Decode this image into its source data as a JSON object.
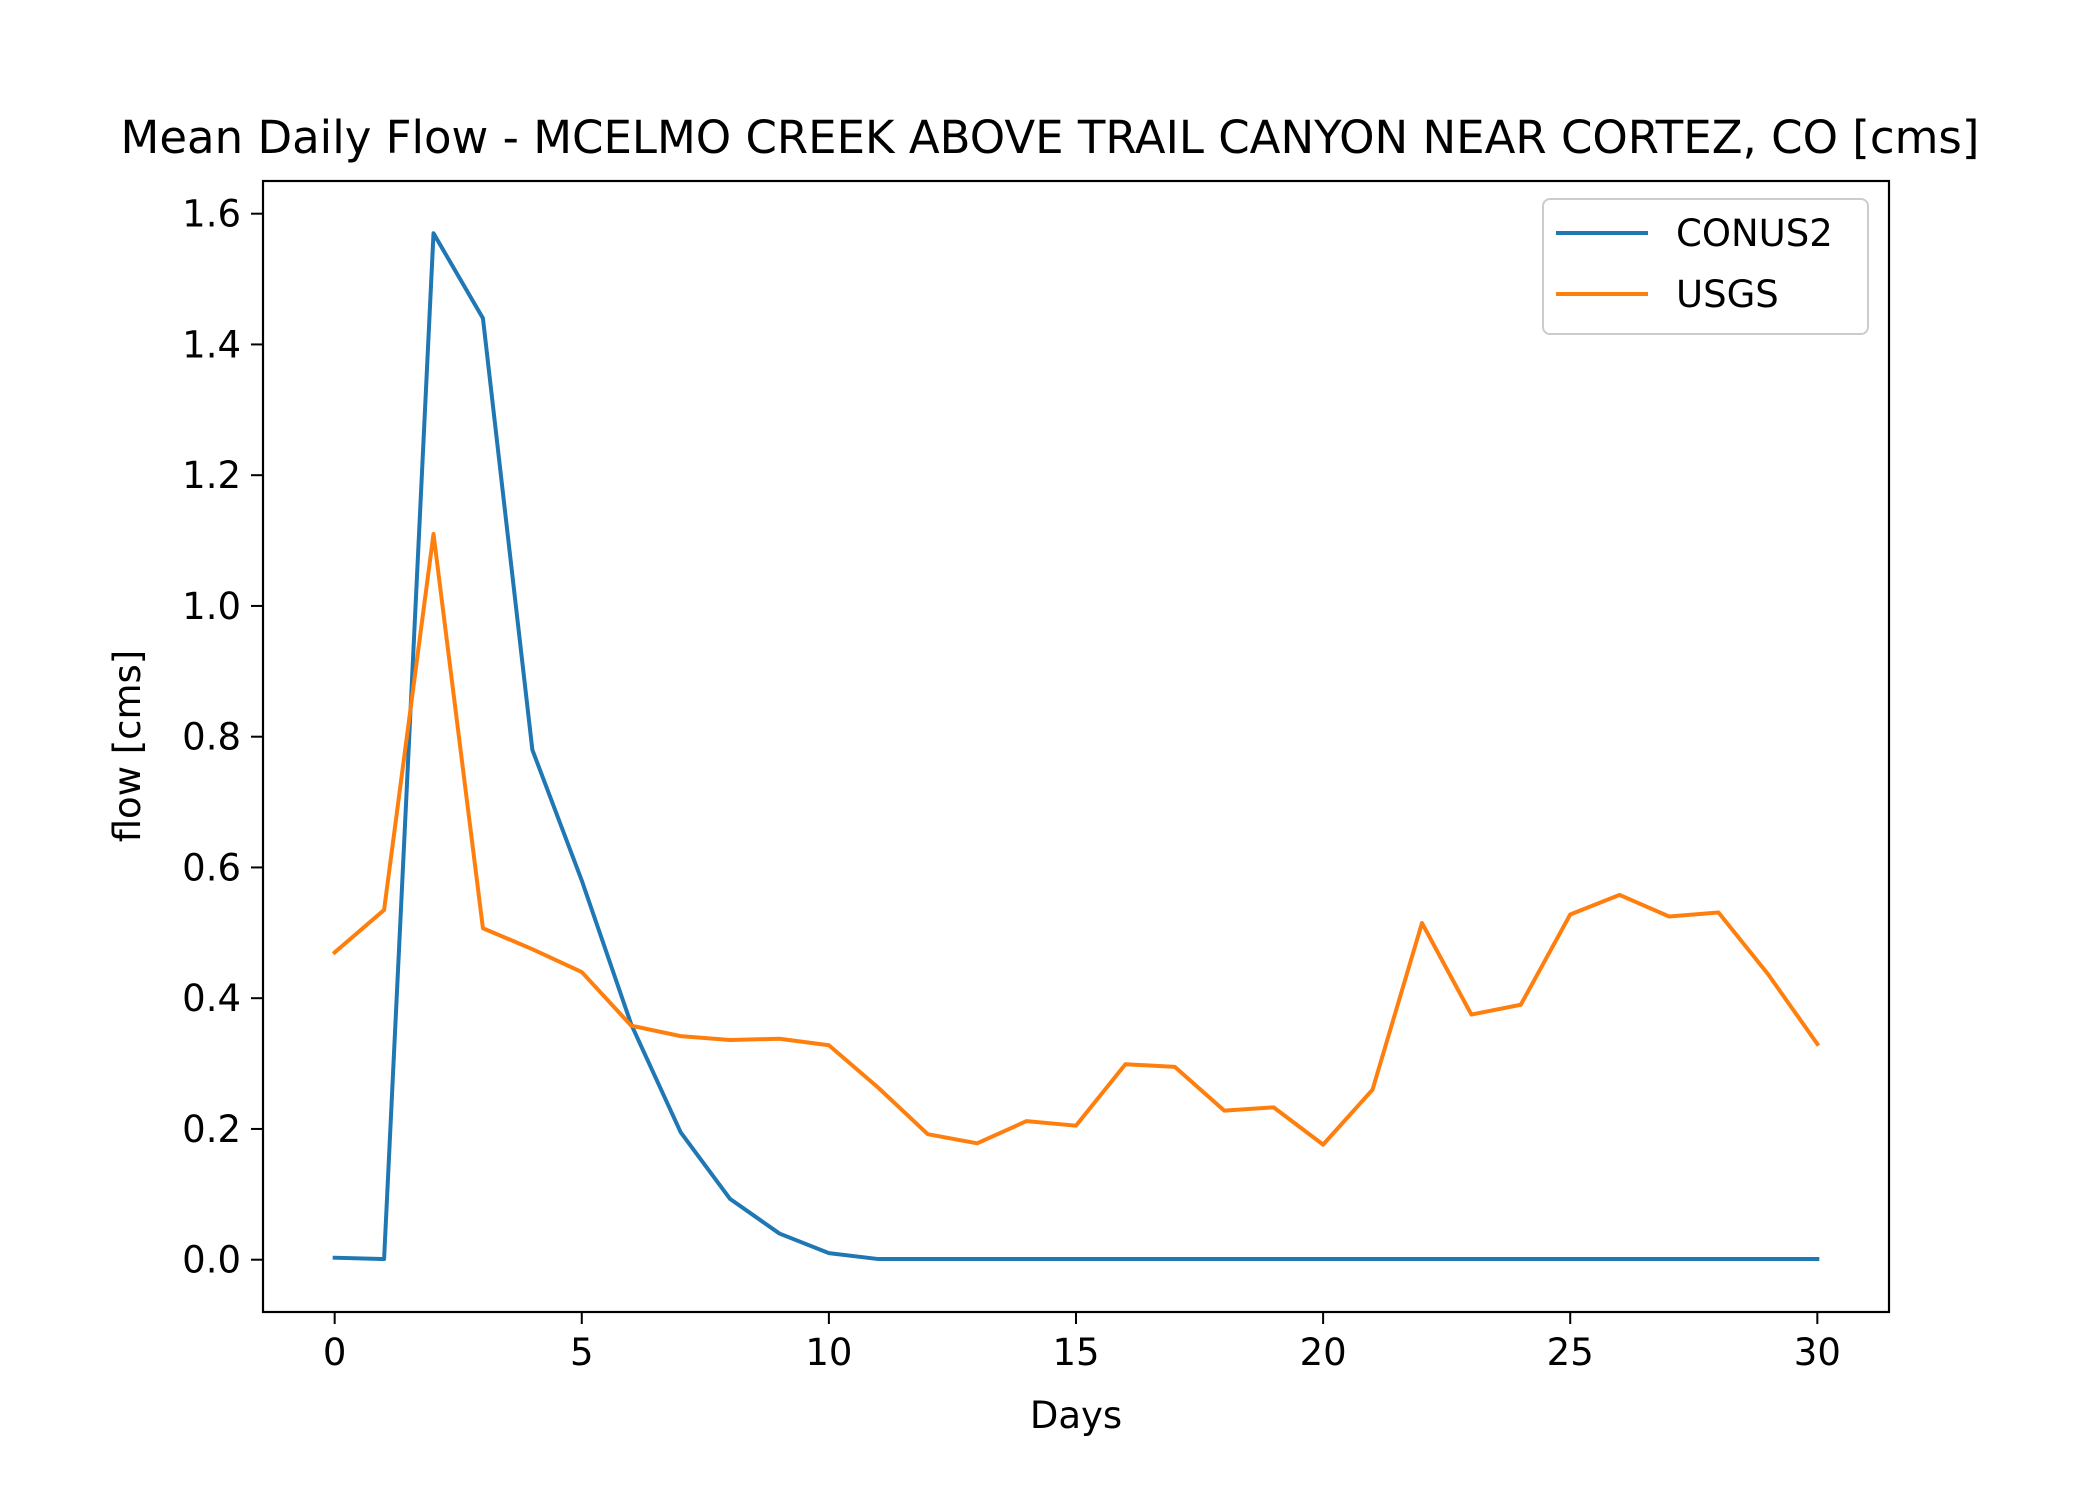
{
  "chart_data": {
    "type": "line",
    "title": "Mean Daily Flow - MCELMO CREEK ABOVE TRAIL CANYON NEAR CORTEZ, CO [cms]",
    "xlabel": "Days",
    "ylabel": "flow [cms]",
    "xlim": [
      -1.45,
      31.45
    ],
    "ylim": [
      -0.08,
      1.65
    ],
    "xticks": [
      0,
      5,
      10,
      15,
      20,
      25,
      30
    ],
    "xtick_labels": [
      "0",
      "5",
      "10",
      "15",
      "20",
      "25",
      "30"
    ],
    "yticks": [
      0.0,
      0.2,
      0.4,
      0.6,
      0.8,
      1.0,
      1.2,
      1.4,
      1.6
    ],
    "ytick_labels": [
      "0.0",
      "0.2",
      "0.4",
      "0.6",
      "0.8",
      "1.0",
      "1.2",
      "1.4",
      "1.6"
    ],
    "grid": false,
    "legend_position": "upper right",
    "x": [
      0,
      1,
      2,
      3,
      4,
      5,
      6,
      7,
      8,
      9,
      10,
      11,
      12,
      13,
      14,
      15,
      16,
      17,
      18,
      19,
      20,
      21,
      22,
      23,
      24,
      25,
      26,
      27,
      28,
      29,
      30
    ],
    "series": [
      {
        "name": "CONUS2",
        "color": "#1f77b4",
        "values": [
          0.003,
          0.001,
          1.57,
          1.44,
          0.78,
          0.58,
          0.36,
          0.195,
          0.093,
          0.04,
          0.01,
          0.001,
          0.001,
          0.001,
          0.001,
          0.001,
          0.001,
          0.001,
          0.001,
          0.001,
          0.001,
          0.001,
          0.001,
          0.001,
          0.001,
          0.001,
          0.001,
          0.001,
          0.001,
          0.001,
          0.001
        ]
      },
      {
        "name": "USGS",
        "color": "#ff7f0e",
        "values": [
          0.47,
          0.535,
          1.11,
          0.507,
          0.475,
          0.44,
          0.358,
          0.342,
          0.336,
          0.338,
          0.328,
          0.263,
          0.192,
          0.178,
          0.212,
          0.205,
          0.299,
          0.295,
          0.228,
          0.233,
          0.176,
          0.26,
          0.515,
          0.375,
          0.39,
          0.528,
          0.558,
          0.525,
          0.531,
          0.437,
          0.33
        ]
      }
    ]
  }
}
